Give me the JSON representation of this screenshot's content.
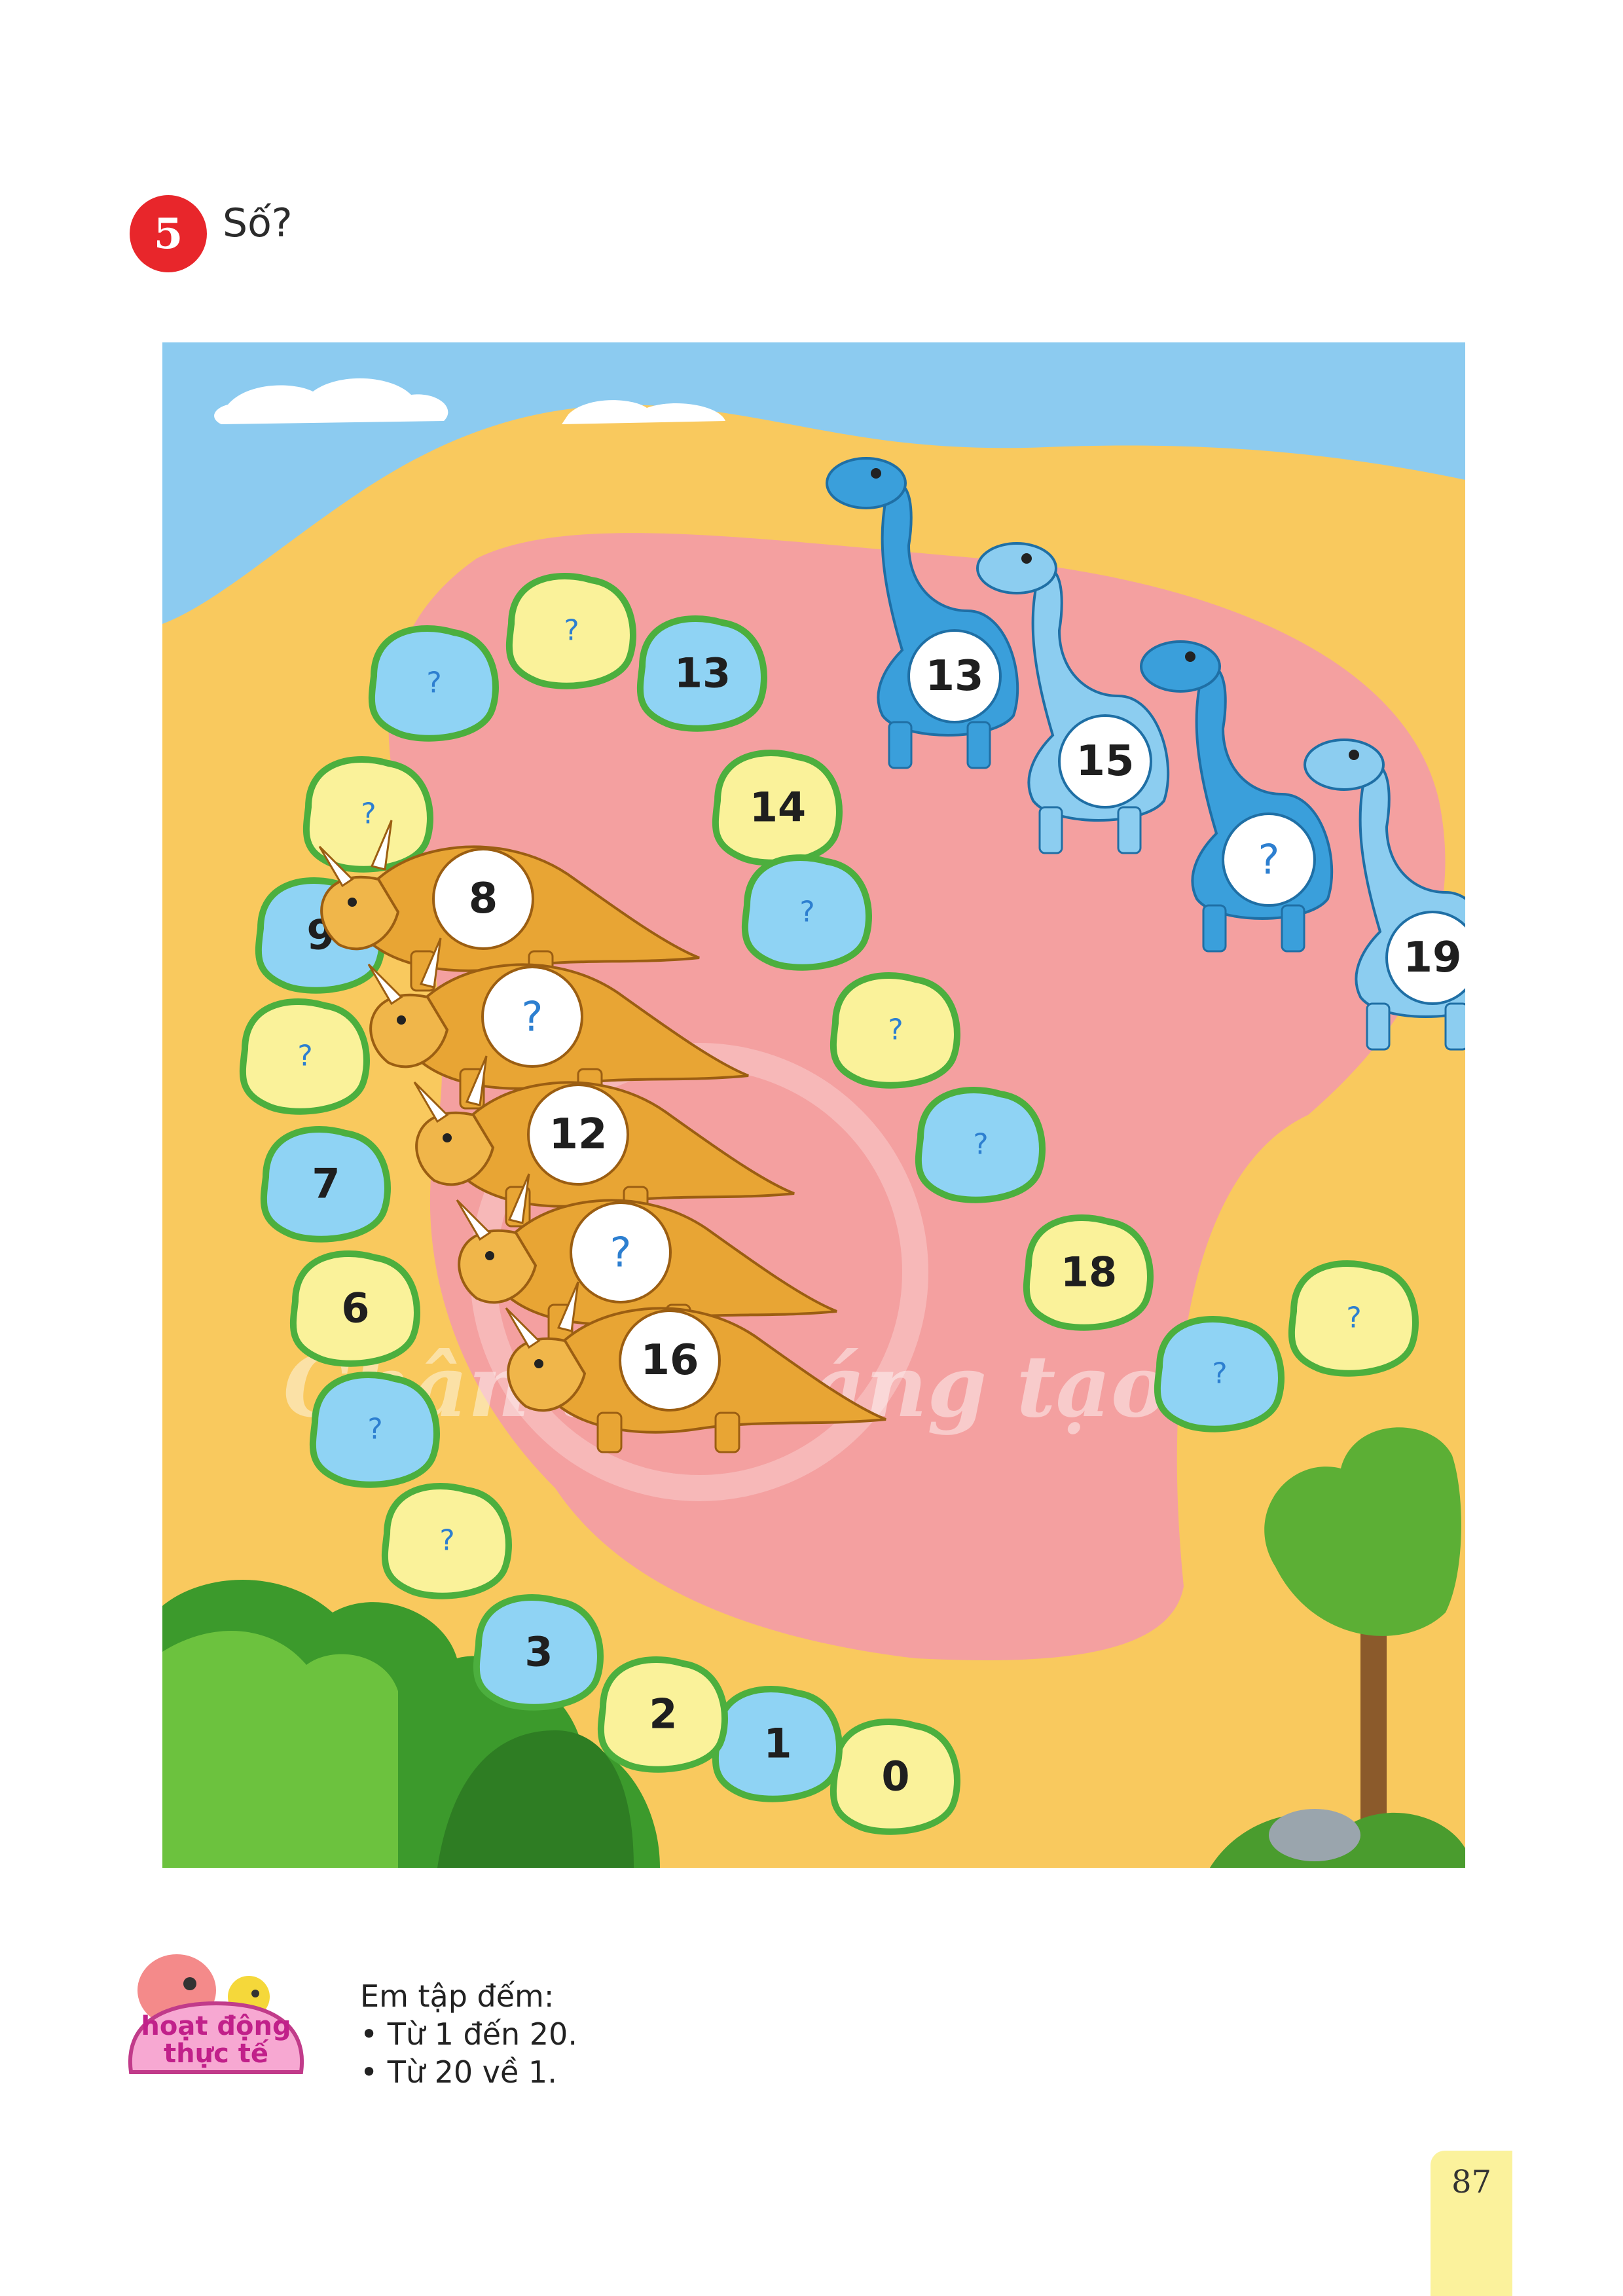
{
  "exercise": {
    "number": "5",
    "prompt": "Số?"
  },
  "path": {
    "stones": [
      {
        "label": "0",
        "color": "yellow"
      },
      {
        "label": "1",
        "color": "blue"
      },
      {
        "label": "2",
        "color": "yellow"
      },
      {
        "label": "3",
        "color": "blue"
      },
      {
        "label": "?",
        "color": "yellow"
      },
      {
        "label": "?",
        "color": "blue"
      },
      {
        "label": "6",
        "color": "yellow"
      },
      {
        "label": "7",
        "color": "blue"
      },
      {
        "label": "?",
        "color": "yellow"
      },
      {
        "label": "9",
        "color": "blue"
      },
      {
        "label": "?",
        "color": "yellow"
      },
      {
        "label": "?",
        "color": "blue"
      },
      {
        "label": "?",
        "color": "yellow"
      },
      {
        "label": "13",
        "color": "blue"
      },
      {
        "label": "14",
        "color": "yellow"
      },
      {
        "label": "?",
        "color": "blue"
      },
      {
        "label": "?",
        "color": "yellow"
      },
      {
        "label": "?",
        "color": "blue"
      },
      {
        "label": "18",
        "color": "yellow"
      },
      {
        "label": "?",
        "color": "blue"
      },
      {
        "label": "?",
        "color": "yellow"
      }
    ]
  },
  "triceratops": [
    "8",
    "?",
    "12",
    "?",
    "16"
  ],
  "brachiosaurus": [
    "13",
    "15",
    "?",
    "19"
  ],
  "watermark": "Chân trời sáng tạo",
  "activity": {
    "logo_text": [
      "hoạt động",
      "thực tế"
    ],
    "intro": "Em tập đếm:",
    "items": [
      "• Từ 1 đến 20.",
      "• Từ 20 về 1."
    ]
  },
  "page_number": "87",
  "colors": {
    "sky": "#8ccbf0",
    "sand": "#f9c95e",
    "pink_area": "#f4a0a0",
    "stone_yellow": "#faf29a",
    "stone_blue": "#8fd3f4",
    "stone_border": "#4caf3e",
    "triceratops": "#e8a534",
    "brachio_dark": "#3a9fdb",
    "brachio_light": "#8ccdf0",
    "badge": "#e8262b"
  }
}
